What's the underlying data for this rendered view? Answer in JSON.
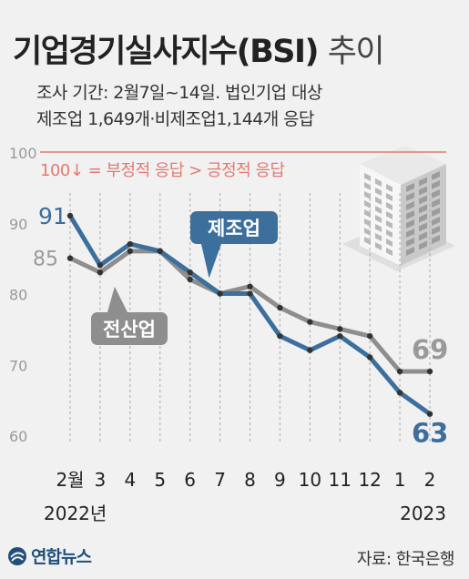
{
  "header": {
    "title_bold": "기업경기실사지수(BSI)",
    "title_light": "추이",
    "subtitle_line1": "조사 기간: 2월7일~14일. 법인기업 대상",
    "subtitle_line2": "제조업 1,649개·비제조업1,144개 응답"
  },
  "footer": {
    "logo_text": "연합뉴스",
    "source": "자료: 한국은행"
  },
  "colors": {
    "manufacturing": "#3d6f9c",
    "all_industries": "#8e8e8e",
    "reference_line": "#e07a70",
    "background": "#f1f1f1"
  },
  "chart_data": {
    "type": "line",
    "categories": [
      "2월",
      "3",
      "4",
      "5",
      "6",
      "7",
      "8",
      "9",
      "10",
      "11",
      "12",
      "1",
      "2"
    ],
    "year_labels": [
      "2022년",
      "2023"
    ],
    "ylim": [
      55,
      100
    ],
    "yticks": [
      60,
      70,
      80,
      90,
      100
    ],
    "reference_line": {
      "value": 100,
      "label": "100↓ = 부정적 응답 > 긍정적 응답"
    },
    "grid": false,
    "series": [
      {
        "name": "제조업",
        "color": "#3d6f9c",
        "values": [
          91,
          84,
          87,
          86,
          83,
          80,
          80,
          74,
          72,
          74,
          71,
          66,
          63
        ],
        "first_label": "91",
        "last_label": "63"
      },
      {
        "name": "전산업",
        "color": "#8e8e8e",
        "values": [
          85,
          83,
          86,
          86,
          82,
          80,
          81,
          78,
          76,
          75,
          74,
          69,
          69
        ],
        "first_label": "85",
        "last_label": "69"
      }
    ]
  }
}
